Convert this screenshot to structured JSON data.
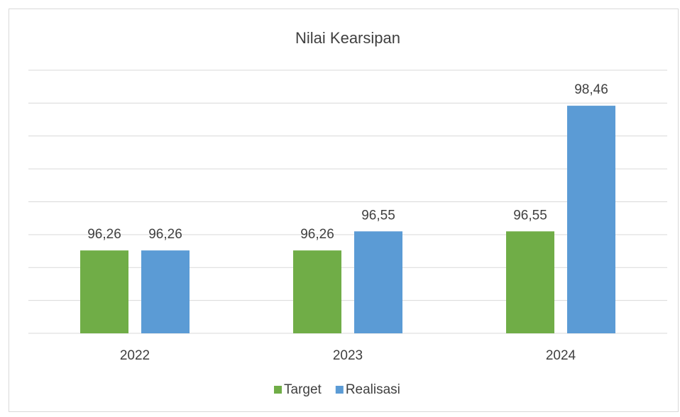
{
  "chart_data": {
    "type": "bar",
    "title": "Nilai Kearsipan",
    "categories": [
      "2022",
      "2023",
      "2024"
    ],
    "series": [
      {
        "name": "Target",
        "color": "#70ad47",
        "values": [
          96.26,
          96.26,
          96.55
        ],
        "value_labels": [
          "96,26",
          "96,26",
          "96,55"
        ]
      },
      {
        "name": "Realisasi",
        "color": "#5b9bd5",
        "values": [
          96.26,
          96.55,
          98.46
        ],
        "value_labels": [
          "96,26",
          "96,55",
          "98,46"
        ]
      }
    ],
    "ylim": [
      95,
      99
    ],
    "yticks": [
      95,
      95.5,
      96,
      96.5,
      97,
      97.5,
      98,
      98.5,
      99
    ],
    "grid": true,
    "legend": "bottom"
  }
}
